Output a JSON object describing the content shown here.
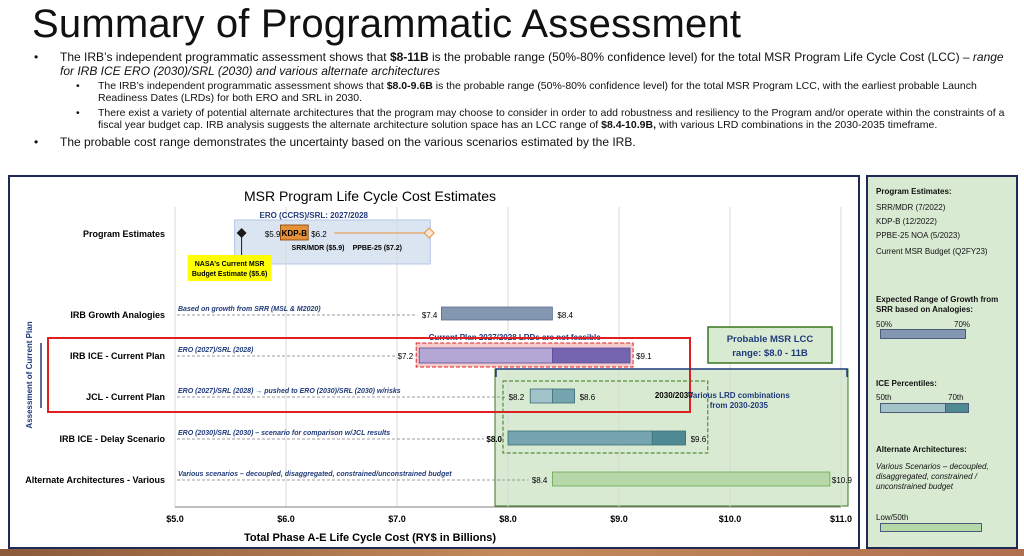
{
  "slide": {
    "title": "Summary of Programmatic Assessment",
    "bullet1_a": "The IRB’s independent programmatic assessment shows that ",
    "bullet1_b": "$8-11B",
    "bullet1_c": " is the probable range (50%-80% confidence level) for the total MSR Program Life Cycle Cost (LCC) – ",
    "bullet1_d": "range for IRB ICE ERO (2030)/SRL (2030) and various alternate architectures",
    "sub1_a": "The IRB’s independent programmatic assessment shows that ",
    "sub1_b": "$8.0-9.6B",
    "sub1_c": " is the probable range (50%-80% confidence level) for the total MSR Program LCC, with the earliest probable Launch Readiness Dates (LRDs) for both ERO and SRL in 2030.",
    "sub2_a": "There exist a variety of potential alternate architectures that the program may choose to consider in order to add robustness and resiliency to the Program and/or operate within the constraints of a fiscal year budget cap. IRB analysis suggests the alternate architecture solution space has an LCC range of ",
    "sub2_b": "$8.4-10.9B,",
    "sub2_c": " with various LRD combinations in the 2030-2035 timeframe.",
    "bullet2": "The probable cost range demonstrates the uncertainty based on the various scenarios estimated by the IRB."
  },
  "chart_data": {
    "type": "bar",
    "title": "MSR Program Life Cycle Cost Estimates",
    "xlabel": "Total Phase A-E Life Cycle Cost (RY$ in Billions)",
    "xlim": [
      5.0,
      11.0
    ],
    "xticks": [
      "$5.0",
      "$6.0",
      "$7.0",
      "$8.0",
      "$9.0",
      "$10.0",
      "$11.0"
    ],
    "y_group_label": "Assessment of Current Plan",
    "rows": [
      {
        "label": "Program Estimates",
        "note": ""
      },
      {
        "label": "IRB Growth Analogies",
        "note": "Based on growth from SRR (MSL & M2020)",
        "low": 7.4,
        "high": 8.4,
        "low_label": "$7.4",
        "high_label": "$8.4"
      },
      {
        "label": "IRB ICE - Current Plan",
        "note": "ERO (2027)/SRL (2028)",
        "low": 7.2,
        "mid": 8.4,
        "high": 9.1,
        "low_label": "$7.2",
        "high_label": "$9.1"
      },
      {
        "label": "JCL - Current Plan",
        "note": "ERO (2027)/SRL (2028) → pushed to ERO (2030)/SRL (2030) w/risks",
        "low": 8.2,
        "mid": 8.4,
        "high": 8.6,
        "low_label": "$8.2",
        "high_label": "$8.6"
      },
      {
        "label": "IRB ICE - Delay Scenario",
        "note": "ERO (2030)/SRL (2030) – scenario for comparison w/JCL results",
        "low": 8.0,
        "mid": 9.3,
        "high": 9.6,
        "low_label": "$8.0",
        "high_label": "$9.6"
      },
      {
        "label": "Alternate Architectures - Various",
        "note": "Various scenarios – decoupled, disaggregated, constrained/unconstrained budget",
        "low": 8.4,
        "high": 10.9,
        "low_label": "$8.4",
        "high_label": "$10.9"
      }
    ],
    "program_estimates": {
      "header": "ERO (CCRS)/SRL: 2027/2028",
      "points": [
        {
          "name": "Current MSR Budget",
          "value": 5.6
        },
        {
          "name": "SRR/MDR",
          "value": 5.9,
          "label": "$5.9"
        },
        {
          "name": "KDP-B",
          "value": 6.2,
          "label": "$6.2"
        },
        {
          "name": "PPBE-25 NOA",
          "value": 7.2
        }
      ],
      "kdp_label": "KDP-B",
      "srr_label": "SRR/MDR ($5.9)",
      "ppbe_label": "PPBE-25 ($7.2)",
      "budget_callout": "NASA’s Current MSR Budget Estimate ($5.6)"
    },
    "annotations": {
      "not_feasible": "Current Plan 2027/2028 LRDs are not feasible",
      "probable_range": "Probable MSR LCC range:  $8.0 - 11B",
      "band_2030": "2030/2030",
      "various_lrd": "Various LRD combinations from 2030-2035"
    },
    "legend": {
      "program_title": "Program Estimates:",
      "program_items": [
        "SRR/MDR (7/2022)",
        "KDP-B (12/2022)",
        "PPBE-25 NOA (5/2023)",
        "Current MSR Budget (Q2FY23)"
      ],
      "growth_title": "Expected Range of Growth from SRR based on Analogies:",
      "growth_labels": [
        "50%",
        "70%"
      ],
      "ice_title": "ICE Percentiles:",
      "ice_labels": [
        "50th",
        "70th"
      ],
      "alt_title": "Alternate Architectures:",
      "alt_desc": "Various Scenarios – decoupled, disaggregated, constrained / unconstrained budget",
      "alt_bar": "Low/50th"
    },
    "colors": {
      "frame": "#1f2a57",
      "highlight_red": "#e02020",
      "growth_bar": "#8497b0",
      "ice_bar": "#8e7cc3",
      "ice_bar_dark": "#7565b0",
      "teal_bar": "#76a5af",
      "teal_dark": "#4f8a94",
      "alt_bar": "#b6d7a8",
      "green_panel": "#d9ead3",
      "green_border": "#38761d",
      "orange": "#f4a261",
      "callout_yellow": "#ffff00"
    }
  }
}
